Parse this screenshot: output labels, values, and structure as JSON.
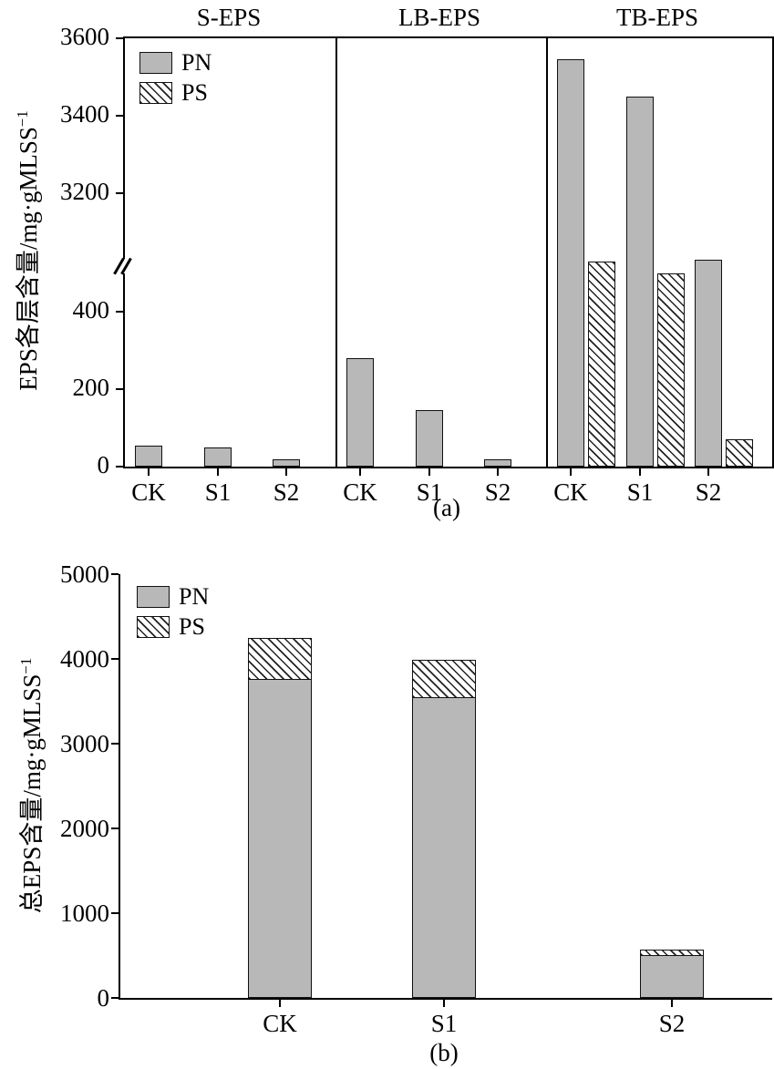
{
  "colors": {
    "pn_fill": "#b8b8b8",
    "ps_fill": "#ffffff",
    "hatch_line": "#222222",
    "bar_border": "#111111",
    "axis": "#000000",
    "background": "#ffffff"
  },
  "chart_data": [
    {
      "id": "a",
      "type": "bar",
      "panel_label": "(a)",
      "ylabel_text": "EPS各层含量/mg·gMLSS",
      "ylabel_sup": "−1",
      "legend": [
        "PN",
        "PS"
      ],
      "categories": [
        "CK",
        "S1",
        "S2"
      ],
      "axis_break": {
        "lower_ticks": [
          0,
          200,
          400
        ],
        "upper_ticks": [
          3200,
          3400,
          3600
        ],
        "lower_range": [
          0,
          520
        ],
        "upper_range": [
          3100,
          3600
        ]
      },
      "grid": false,
      "legend_position": "top-left",
      "panels": [
        {
          "title": "S-EPS",
          "series": [
            {
              "name": "PN",
              "values": [
                55,
                50,
                18
              ]
            },
            {
              "name": "PS",
              "values": [
                0,
                0,
                0
              ]
            }
          ]
        },
        {
          "title": "LB-EPS",
          "series": [
            {
              "name": "PN",
              "values": [
                280,
                145,
                20
              ]
            },
            {
              "name": "PS",
              "values": [
                0,
                0,
                0
              ]
            }
          ]
        },
        {
          "title": "TB-EPS",
          "series": [
            {
              "name": "PN",
              "values": [
                3545,
                3450,
                535
              ]
            },
            {
              "name": "PS",
              "values": [
                530,
                500,
                70
              ]
            }
          ]
        }
      ]
    },
    {
      "id": "b",
      "type": "stacked-bar",
      "panel_label": "(b)",
      "ylabel_text": "总EPS含量/mg·gMLSS",
      "ylabel_sup": "−1",
      "legend": [
        "PN",
        "PS"
      ],
      "categories": [
        "CK",
        "S1",
        "S2"
      ],
      "yticks": [
        0,
        1000,
        2000,
        3000,
        4000,
        5000
      ],
      "ylim": [
        0,
        5000
      ],
      "grid": false,
      "legend_position": "top-left",
      "series": [
        {
          "name": "PN",
          "values": [
            3760,
            3550,
            510
          ]
        },
        {
          "name": "PS",
          "values": [
            500,
            450,
            70
          ]
        }
      ]
    }
  ]
}
